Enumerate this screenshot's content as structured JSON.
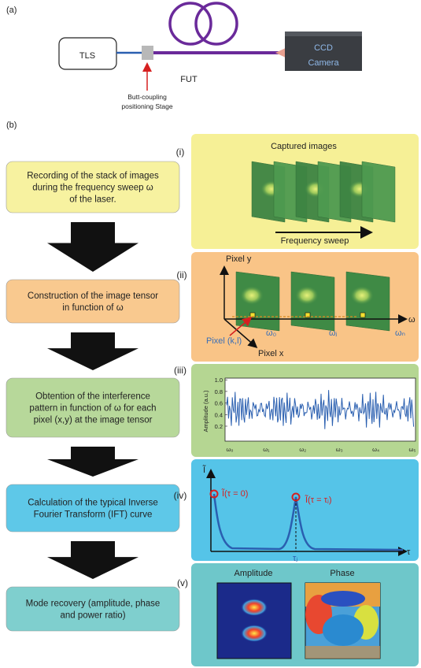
{
  "panel_a": {
    "label": "(a)",
    "source": "TLS",
    "camera": [
      "CCD",
      "Camera"
    ],
    "fiber": "FUT",
    "stage": [
      "Butt-coupling",
      "positioning Stage"
    ]
  },
  "panel_b": {
    "label": "(b)",
    "steps": [
      {
        "index": "(i)",
        "text": [
          "Recording of the stack of images",
          "during the frequency sweep ω",
          "of the laser."
        ]
      },
      {
        "index": "(ii)",
        "text": [
          "Construction of the image tensor",
          "in function of ω"
        ]
      },
      {
        "index": "(iii)",
        "text": [
          "Obtention of the interference",
          "pattern in function of ω for each",
          "pixel (x,y) at the image tensor"
        ]
      },
      {
        "index": "(iv)",
        "text": [
          "Calculation of the typical Inverse",
          "Fourier Transform (IFT) curve"
        ]
      },
      {
        "index": "(v)",
        "text": [
          "Mode recovery (amplitude, phase",
          "and power ratio)"
        ]
      }
    ],
    "captured": {
      "title": "Captured images",
      "sweep": "Frequency sweep"
    },
    "tensor": {
      "y_axis": "Pixel y",
      "x_axis": "Pixel x",
      "pixel": "Pixel (k,l)",
      "omega": "ω",
      "frames": [
        "ω₀",
        "ωⱼ",
        "ωₙ"
      ]
    },
    "interference": {
      "y_label": "Amplitude (a.u.)",
      "yticks": [
        "0.2",
        "0.4",
        "0.6",
        "0.8",
        "1.0"
      ],
      "xticks": [
        "ω₀",
        "ω₁",
        "ω₂",
        "ω₃",
        "ω₄",
        "ω₅"
      ]
    },
    "ift": {
      "y_axis": "Ĩ",
      "peak0": "Ĩ(τ = 0)",
      "peakj": "Ĩ(τ = τⱼ)",
      "tau_j": "τⱼ",
      "x_axis": "τ"
    },
    "modes": {
      "amplitude": "Amplitude",
      "phase": "Phase"
    }
  }
}
